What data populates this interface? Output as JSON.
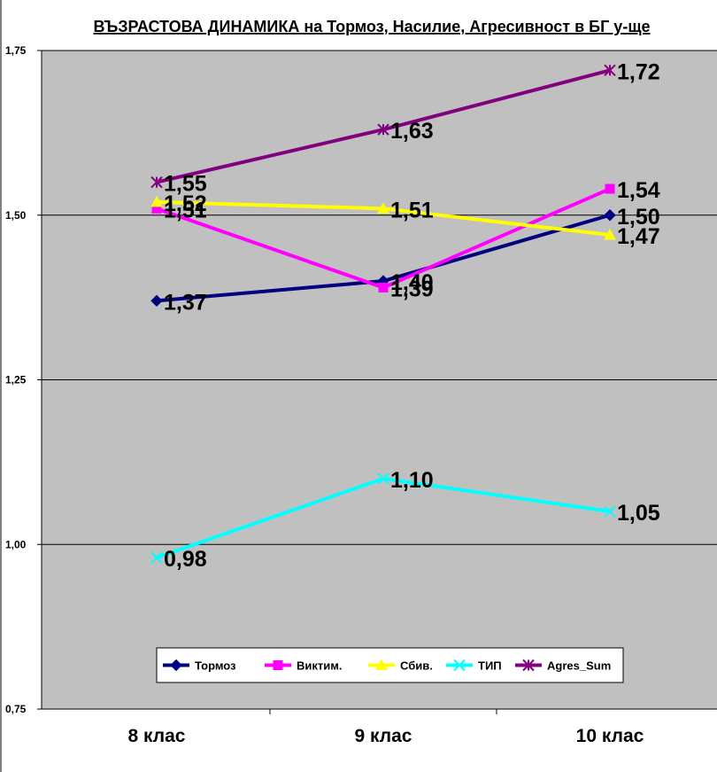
{
  "chart_data": {
    "type": "line",
    "title": "ВЪЗРАСТОВА ДИНАМИКА на Тормоз, Насилие, Агресивност в БГ у-ще",
    "categories": [
      "8 клас",
      "9 клас",
      "10 клас"
    ],
    "ylim": [
      0.75,
      1.75
    ],
    "yticks": [
      "0,75",
      "1,00",
      "1,25",
      "1,50",
      "1,75"
    ],
    "ytick_values": [
      0.75,
      1.0,
      1.25,
      1.5,
      1.75
    ],
    "grid": true,
    "legend_position": "bottom",
    "plot_background": "#c0c0c0",
    "series": [
      {
        "name": "Тормоз",
        "values": [
          1.37,
          1.4,
          1.5
        ],
        "labels": [
          "1,37",
          "1,40",
          "1,50"
        ],
        "color": "#000080",
        "marker": "diamond"
      },
      {
        "name": "Виктим.",
        "values": [
          1.51,
          1.39,
          1.54
        ],
        "labels": [
          "1,51",
          "1,39",
          "1,54"
        ],
        "color": "#ff00ff",
        "marker": "square"
      },
      {
        "name": "Сбив.",
        "values": [
          1.52,
          1.51,
          1.47
        ],
        "labels": [
          "1,52",
          "1,51",
          "1,47"
        ],
        "color": "#ffff00",
        "marker": "triangle"
      },
      {
        "name": "ТИП",
        "values": [
          0.98,
          1.1,
          1.05
        ],
        "labels": [
          "0,98",
          "1,10",
          "1,05"
        ],
        "color": "#00ffff",
        "marker": "x"
      },
      {
        "name": "Agres_Sum",
        "values": [
          1.55,
          1.63,
          1.72
        ],
        "labels": [
          "1,55",
          "1,63",
          "1,72"
        ],
        "color": "#800080",
        "marker": "star"
      }
    ]
  }
}
